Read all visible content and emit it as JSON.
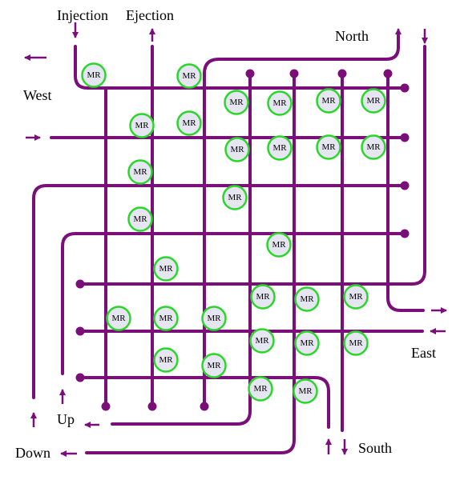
{
  "labels": {
    "injection": "Injection",
    "ejection": "Ejection",
    "north": "North",
    "west": "West",
    "east": "East",
    "south": "South",
    "up": "Up",
    "down": "Down"
  },
  "ring": {
    "label": "MR",
    "count": 30
  },
  "colors": {
    "track": "#7a0f7a",
    "ring_stroke": "#2bd62b",
    "ring_fill": "#e6e6f2",
    "text": "#000000"
  }
}
